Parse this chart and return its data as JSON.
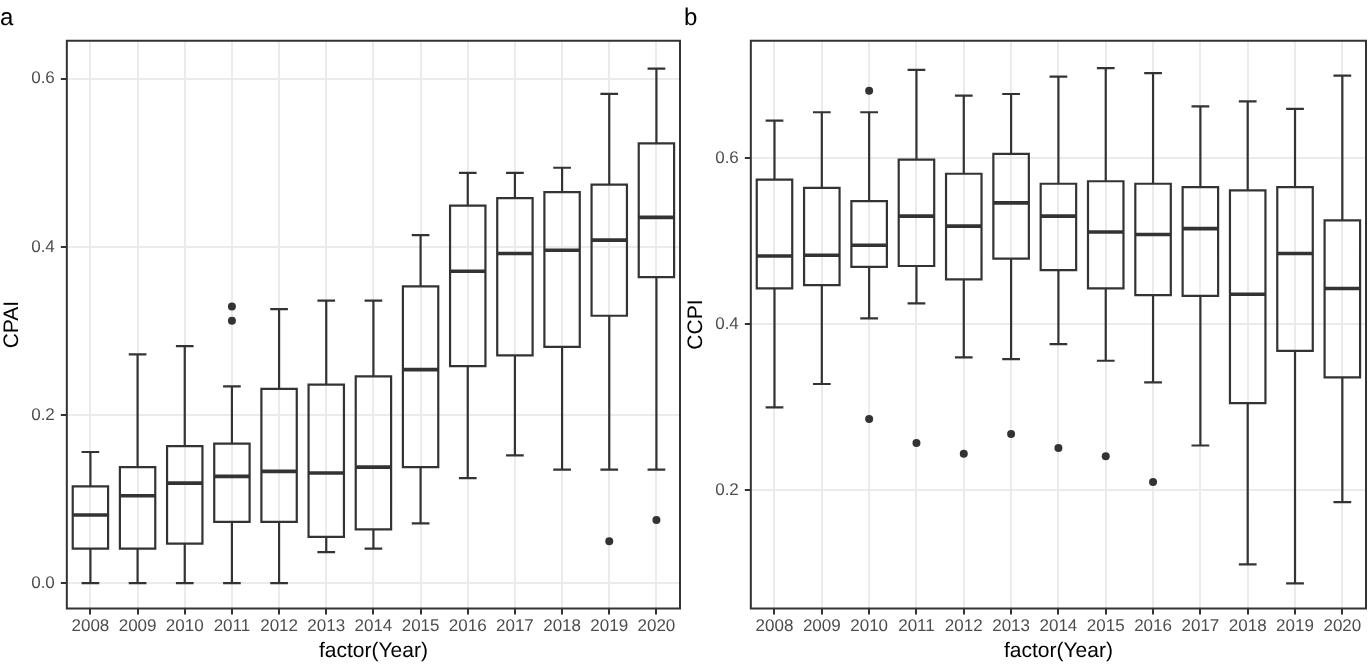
{
  "chart_data": [
    {
      "type": "box",
      "title": "a",
      "xlabel": "factor(Year)",
      "ylabel": "CPAI",
      "color": "#333333",
      "grid": true,
      "categories": [
        "2008",
        "2009",
        "2010",
        "2011",
        "2012",
        "2013",
        "2014",
        "2015",
        "2016",
        "2017",
        "2018",
        "2019",
        "2020"
      ],
      "ylim": [
        -0.03,
        0.645
      ],
      "yticks": [
        {
          "value": 0,
          "label": "0.0"
        },
        0.2,
        0.4,
        0.6
      ],
      "boxes": [
        {
          "low": 0,
          "q1": 0.041,
          "median": 0.081,
          "q3": 0.115,
          "high": 0.156
        },
        {
          "low": 0,
          "q1": 0.041,
          "median": 0.104,
          "q3": 0.138,
          "high": 0.272
        },
        {
          "low": 0,
          "q1": 0.047,
          "median": 0.119,
          "q3": 0.163,
          "high": 0.282
        },
        {
          "low": 0,
          "q1": 0.073,
          "median": 0.127,
          "q3": 0.166,
          "high": 0.234,
          "outliers": [
            0.329,
            0.312
          ]
        },
        {
          "low": 0,
          "q1": 0.073,
          "median": 0.133,
          "q3": 0.231,
          "high": 0.326
        },
        {
          "low": 0.037,
          "q1": 0.055,
          "median": 0.131,
          "q3": 0.236,
          "high": 0.336
        },
        {
          "low": 0.041,
          "q1": 0.064,
          "median": 0.138,
          "q3": 0.246,
          "high": 0.336
        },
        {
          "low": 0.071,
          "q1": 0.138,
          "median": 0.254,
          "q3": 0.353,
          "high": 0.414
        },
        {
          "low": 0.125,
          "q1": 0.258,
          "median": 0.371,
          "q3": 0.449,
          "high": 0.488
        },
        {
          "low": 0.152,
          "q1": 0.271,
          "median": 0.392,
          "q3": 0.458,
          "high": 0.488
        },
        {
          "low": 0.135,
          "q1": 0.281,
          "median": 0.396,
          "q3": 0.465,
          "high": 0.494
        },
        {
          "low": 0.135,
          "q1": 0.318,
          "median": 0.408,
          "q3": 0.474,
          "high": 0.582,
          "outliers": [
            0.05
          ]
        },
        {
          "low": 0.135,
          "q1": 0.364,
          "median": 0.435,
          "q3": 0.523,
          "high": 0.612,
          "outliers": [
            0.075
          ]
        }
      ]
    },
    {
      "type": "box",
      "title": "b",
      "xlabel": "factor(Year)",
      "ylabel": "CCPI",
      "color": "#333333",
      "grid": true,
      "categories": [
        "2008",
        "2009",
        "2010",
        "2011",
        "2012",
        "2013",
        "2014",
        "2015",
        "2016",
        "2017",
        "2018",
        "2019",
        "2020"
      ],
      "ylim": [
        0.058,
        0.741
      ],
      "yticks": [
        0.2,
        0.4,
        0.6
      ],
      "boxes": [
        {
          "low": 0.3,
          "q1": 0.443,
          "median": 0.482,
          "q3": 0.574,
          "high": 0.645
        },
        {
          "low": 0.328,
          "q1": 0.447,
          "median": 0.483,
          "q3": 0.564,
          "high": 0.655
        },
        {
          "low": 0.407,
          "q1": 0.469,
          "median": 0.495,
          "q3": 0.548,
          "high": 0.655,
          "outliers": [
            0.681,
            0.286
          ]
        },
        {
          "low": 0.425,
          "q1": 0.47,
          "median": 0.53,
          "q3": 0.598,
          "high": 0.706,
          "outliers": [
            0.257
          ]
        },
        {
          "low": 0.36,
          "q1": 0.454,
          "median": 0.518,
          "q3": 0.581,
          "high": 0.675,
          "outliers": [
            0.244
          ]
        },
        {
          "low": 0.358,
          "q1": 0.479,
          "median": 0.546,
          "q3": 0.605,
          "high": 0.677,
          "outliers": [
            0.268
          ]
        },
        {
          "low": 0.376,
          "q1": 0.465,
          "median": 0.53,
          "q3": 0.569,
          "high": 0.698,
          "outliers": [
            0.251
          ]
        },
        {
          "low": 0.356,
          "q1": 0.443,
          "median": 0.511,
          "q3": 0.572,
          "high": 0.708,
          "outliers": [
            0.241
          ]
        },
        {
          "low": 0.33,
          "q1": 0.435,
          "median": 0.508,
          "q3": 0.569,
          "high": 0.702,
          "outliers": [
            0.21
          ]
        },
        {
          "low": 0.254,
          "q1": 0.434,
          "median": 0.515,
          "q3": 0.565,
          "high": 0.662
        },
        {
          "low": 0.111,
          "q1": 0.305,
          "median": 0.436,
          "q3": 0.561,
          "high": 0.668
        },
        {
          "low": 0.088,
          "q1": 0.368,
          "median": 0.485,
          "q3": 0.565,
          "high": 0.659
        },
        {
          "low": 0.186,
          "q1": 0.336,
          "median": 0.443,
          "q3": 0.525,
          "high": 0.699
        }
      ]
    }
  ]
}
